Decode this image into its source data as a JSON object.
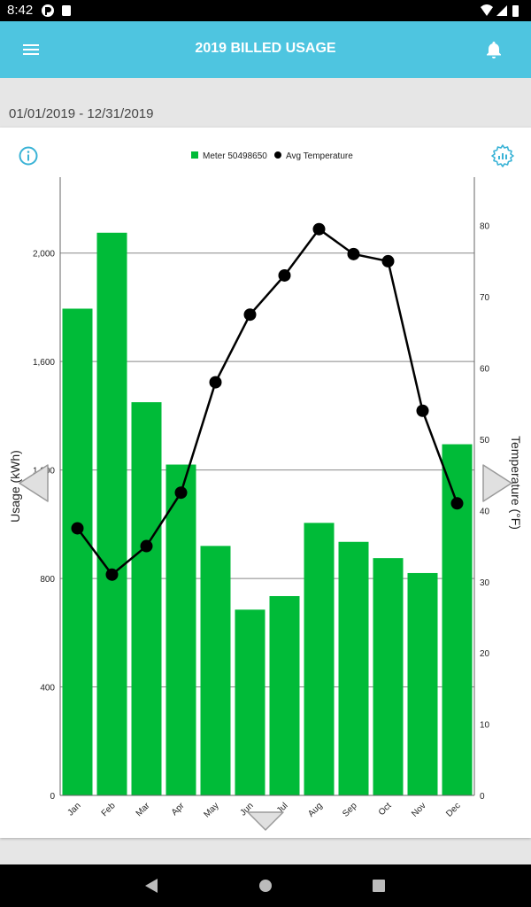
{
  "status": {
    "time": "8:42"
  },
  "header": {
    "title": "2019 BILLED USAGE"
  },
  "date_range": "01/01/2019 - 12/31/2019",
  "chart_data": {
    "type": "bar",
    "categories": [
      "Jan",
      "Feb",
      "Mar",
      "Apr",
      "May",
      "Jun",
      "Jul",
      "Aug",
      "Sep",
      "Oct",
      "Nov",
      "Dec"
    ],
    "series": [
      {
        "name": "Meter 50498650",
        "type": "bar",
        "axis": "left",
        "color": "#00bb38",
        "values": [
          1795,
          2075,
          1450,
          1220,
          920,
          685,
          735,
          1005,
          935,
          875,
          820,
          1295
        ]
      },
      {
        "name": "Avg Temperature",
        "type": "line",
        "axis": "right",
        "color": "#000000",
        "values": [
          37.5,
          31,
          35,
          42.5,
          58,
          67.5,
          73,
          79.5,
          76,
          75,
          54,
          41
        ]
      }
    ],
    "ylabel": "Usage (kWh)",
    "y2label": "Temperature (°F)",
    "ylim": [
      0,
      2280
    ],
    "y2lim": [
      0,
      86.8
    ],
    "yticks": [
      {
        "v": 0,
        "l": "0"
      },
      {
        "v": 400,
        "l": "400"
      },
      {
        "v": 800,
        "l": "800"
      },
      {
        "v": 1200,
        "l": "1,200"
      },
      {
        "v": 1600,
        "l": "1,600"
      },
      {
        "v": 2000,
        "l": "2,000"
      }
    ],
    "y2ticks": [
      0,
      10,
      20,
      30,
      40,
      50,
      60,
      70,
      80
    ],
    "grid": true,
    "legend": "top-center"
  },
  "colors": {
    "accent": "#4ec5e0",
    "bar": "#00bb38"
  },
  "icons": {
    "menu": "menu-icon",
    "bell": "bell-icon",
    "info": "info-icon",
    "settings": "gear-icon",
    "prev": "chevron-left-icon",
    "next": "chevron-right-icon",
    "down": "chevron-down-icon"
  }
}
